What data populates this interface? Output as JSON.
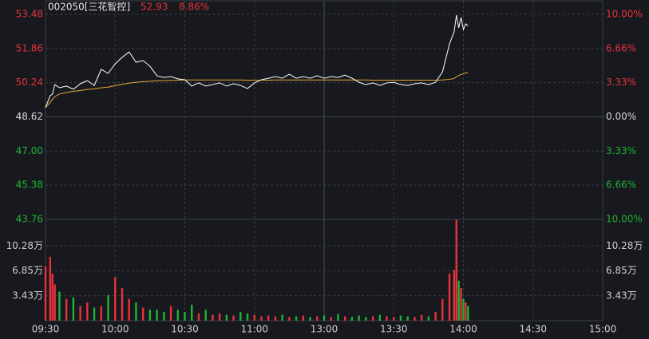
{
  "chart_data": {
    "type": "line",
    "title": "002050[三花智控]",
    "latest_price": 52.93,
    "latest_change": {
      "value": 8.86,
      "label": "8.86%"
    },
    "prev_close": 48.62,
    "up_color": "#e8323c",
    "down_color": "#1fb335",
    "flat_color": "#d8d8d8",
    "x": [
      "09:30",
      "09:32",
      "09:33",
      "09:34",
      "09:36",
      "09:39",
      "09:42",
      "09:45",
      "09:48",
      "09:51",
      "09:54",
      "09:57",
      "10:00",
      "10:03",
      "10:06",
      "10:09",
      "10:12",
      "10:15",
      "10:18",
      "10:21",
      "10:24",
      "10:27",
      "10:30",
      "10:33",
      "10:36",
      "10:39",
      "10:42",
      "10:45",
      "10:48",
      "10:51",
      "10:54",
      "10:57",
      "11:00",
      "11:03",
      "11:06",
      "11:09",
      "11:12",
      "11:15",
      "11:18",
      "11:21",
      "11:24",
      "11:27",
      "11:30",
      "13:03",
      "13:06",
      "13:09",
      "13:12",
      "13:15",
      "13:18",
      "13:21",
      "13:24",
      "13:27",
      "13:30",
      "13:33",
      "13:36",
      "13:39",
      "13:42",
      "13:45",
      "13:48",
      "13:51",
      "13:54",
      "13:56",
      "13:57",
      "13:58",
      "13:59",
      "14:00",
      "14:01",
      "14:02"
    ],
    "xticks": [
      "09:30",
      "10:00",
      "10:30",
      "11:00",
      "13:00",
      "13:30",
      "14:00",
      "14:30",
      "15:00"
    ],
    "ylim": [
      43.76,
      53.48
    ],
    "yticks": [
      53.48,
      51.86,
      50.24,
      48.62,
      {
        "value": 47,
        "label": "47.00"
      },
      45.38,
      43.76
    ],
    "y2lim": [
      -10,
      10
    ],
    "y2ticks": [
      {
        "value": 10,
        "label": "10.00%"
      },
      {
        "value": 6.66,
        "label": "6.66%"
      },
      {
        "value": 3.33,
        "label": "3.33%"
      },
      {
        "value": 0,
        "label": "0.00%"
      },
      {
        "value": -3.33,
        "label": "3.33%"
      },
      {
        "value": -6.66,
        "label": "6.66%"
      },
      {
        "value": -10,
        "label": "10.00%"
      }
    ],
    "series": [
      {
        "color": "#ffffff",
        "values": [
          49.06,
          49.62,
          49.7,
          50.15,
          50.0,
          50.08,
          49.93,
          50.19,
          50.34,
          50.11,
          50.87,
          50.68,
          51.13,
          51.44,
          51.7,
          51.21,
          51.29,
          51.02,
          50.57,
          50.49,
          50.53,
          50.42,
          50.38,
          50.08,
          50.23,
          50.08,
          50.15,
          50.23,
          50.08,
          50.19,
          50.11,
          49.96,
          50.23,
          50.38,
          50.45,
          50.53,
          50.45,
          50.64,
          50.45,
          50.53,
          50.45,
          50.57,
          50.45,
          50.53,
          50.49,
          50.6,
          50.45,
          50.26,
          50.15,
          50.23,
          50.11,
          50.23,
          50.26,
          50.15,
          50.11,
          50.19,
          50.23,
          50.15,
          50.26,
          50.75,
          52.08,
          52.65,
          53.44,
          52.84,
          53.33,
          52.76,
          53.03,
          52.93
        ]
      },
      {
        "color": "#e8a838",
        "values": [
          49.06,
          49.3,
          49.45,
          49.58,
          49.7,
          49.78,
          49.83,
          49.87,
          49.92,
          49.95,
          50.0,
          50.03,
          50.1,
          50.16,
          50.22,
          50.26,
          50.29,
          50.31,
          50.33,
          50.34,
          50.35,
          50.36,
          50.37,
          50.37,
          50.37,
          50.37,
          50.37,
          50.37,
          50.37,
          50.37,
          50.37,
          50.36,
          50.36,
          50.36,
          50.36,
          50.37,
          50.37,
          50.37,
          50.37,
          50.37,
          50.37,
          50.37,
          50.37,
          50.37,
          50.37,
          50.37,
          50.37,
          50.37,
          50.37,
          50.36,
          50.36,
          50.36,
          50.36,
          50.36,
          50.36,
          50.36,
          50.36,
          50.36,
          50.36,
          50.37,
          50.4,
          50.44,
          50.52,
          50.58,
          50.63,
          50.67,
          50.7,
          50.72
        ]
      }
    ],
    "volume": {
      "type": "bar",
      "ylim": [
        0,
        13.95
      ],
      "yticks": [
        {
          "value": 10.28,
          "label": "10.28万"
        },
        {
          "value": 6.85,
          "label": "6.85万"
        },
        {
          "value": 3.43,
          "label": "3.43万"
        }
      ],
      "values": [
        7.5,
        8.8,
        6.5,
        5.0,
        4.0,
        3.0,
        3.2,
        2.0,
        2.5,
        1.8,
        2.0,
        3.5,
        6.0,
        4.5,
        3.0,
        2.5,
        1.8,
        1.5,
        1.5,
        1.2,
        2.0,
        1.5,
        1.2,
        2.2,
        1.0,
        1.5,
        0.8,
        1.0,
        0.8,
        0.7,
        1.2,
        1.0,
        0.8,
        0.6,
        0.7,
        0.6,
        0.8,
        0.5,
        0.6,
        0.7,
        0.5,
        0.6,
        0.7,
        0.5,
        0.9,
        0.6,
        0.5,
        0.7,
        0.5,
        0.6,
        0.8,
        0.6,
        0.5,
        0.7,
        0.6,
        0.5,
        0.8,
        0.6,
        1.2,
        3.0,
        6.5,
        7.0,
        13.9,
        5.5,
        4.5,
        3.0,
        2.5,
        2.0
      ]
    }
  }
}
